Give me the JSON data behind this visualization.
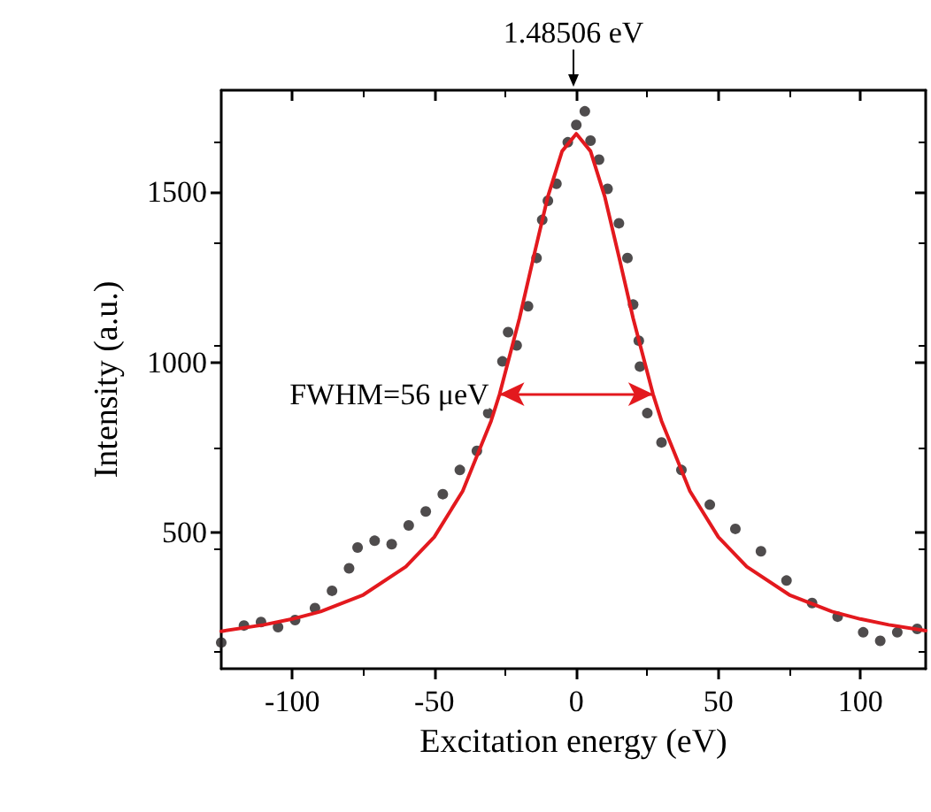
{
  "chart_data": {
    "type": "scatter",
    "xlabel": "Excitation energy (eV)",
    "ylabel": "Intensity (a.u.)",
    "xlim": [
      -125,
      123
    ],
    "ylim": [
      100,
      1800
    ],
    "xticks": [
      -100,
      -50,
      0,
      50,
      100
    ],
    "yticks": [
      500,
      1000,
      1500
    ],
    "grid": false,
    "annotations": [
      "1.48506 eV",
      {
        "text": "FWHM=56 μeV",
        "x": -27,
        "y": 907
      }
    ],
    "series": [
      {
        "marker": "circle",
        "color": "#231f20",
        "x": [
          -125,
          -117,
          -111,
          -105,
          -99,
          -92,
          -86,
          -80,
          -77,
          -71,
          -65,
          -59,
          -53,
          -47,
          -41,
          -35,
          -31,
          -26,
          -24,
          -21,
          -17,
          -14,
          -12,
          -10,
          -7,
          -3,
          0,
          3,
          5,
          8,
          11,
          15,
          18,
          20,
          22,
          22.4,
          25,
          30,
          37,
          47,
          56,
          65,
          74,
          83,
          92,
          101,
          107,
          113,
          120
        ],
        "values": [
          177,
          227,
          237,
          222,
          243,
          278,
          329,
          395,
          456,
          476,
          466,
          521,
          562,
          613,
          684,
          740,
          851,
          1003,
          1089,
          1050,
          1165,
          1307,
          1419,
          1475,
          1525,
          1647,
          1698,
          1738,
          1652,
          1596,
          1510,
          1409,
          1307,
          1170,
          1064,
          988,
          851,
          765,
          684,
          582,
          511,
          445,
          359,
          293,
          253,
          207,
          182,
          207,
          217
        ]
      },
      {
        "type": "line",
        "marker": "none",
        "line_style": "solid",
        "color": "#e3191e",
        "x": [
          -125,
          -110,
          -100,
          -90,
          -75,
          -60,
          -50,
          -40,
          -30,
          -27,
          -20,
          -15,
          -10,
          -5,
          0,
          5,
          10,
          15,
          20,
          27,
          30,
          40,
          50,
          60,
          75,
          90,
          100,
          110,
          123
        ],
        "values": [
          210,
          229,
          246,
          268,
          317,
          400,
          487,
          622,
          828,
          907,
          1130,
          1311,
          1488,
          1621,
          1672,
          1621,
          1488,
          1311,
          1130,
          907,
          828,
          622,
          487,
          400,
          317,
          268,
          246,
          229,
          212
        ]
      }
    ]
  }
}
